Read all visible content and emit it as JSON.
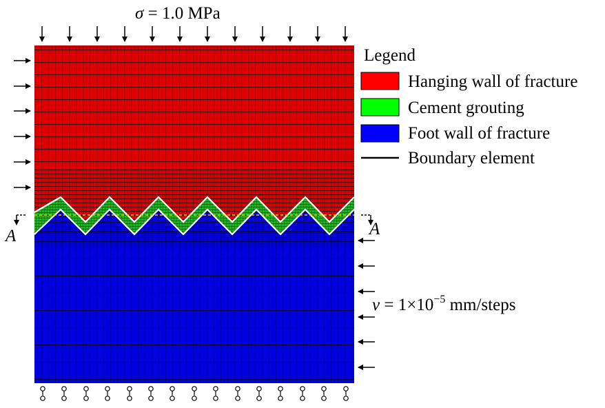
{
  "annotations": {
    "stress_symbol": "σ",
    "stress_value": " = 1.0 MPa",
    "velocity_symbol": "v",
    "velocity_prefix": " = 1×10",
    "velocity_exponent": "−5",
    "velocity_suffix": " mm/steps",
    "section_left": "A",
    "section_right": "A"
  },
  "legend": {
    "title": "Legend",
    "items": [
      {
        "label": "Hanging wall of fracture",
        "color": "#ff0000",
        "kind": "swatch"
      },
      {
        "label": "Cement grouting",
        "color": "#00ff00",
        "kind": "swatch"
      },
      {
        "label": "Foot wall of fracture",
        "color": "#0000ff",
        "kind": "swatch"
      },
      {
        "label": "Boundary element",
        "color": "#000000",
        "kind": "line"
      }
    ]
  },
  "colors": {
    "hanging_wall": "#e00000",
    "grout": "#10c010",
    "foot_wall": "#0000e0",
    "mesh_line": "#000000",
    "interface": "#ffffff",
    "section_line": "#e8d000"
  },
  "icons": {
    "load_arrow": "arrow-icon",
    "support": "roller-support-icon"
  }
}
